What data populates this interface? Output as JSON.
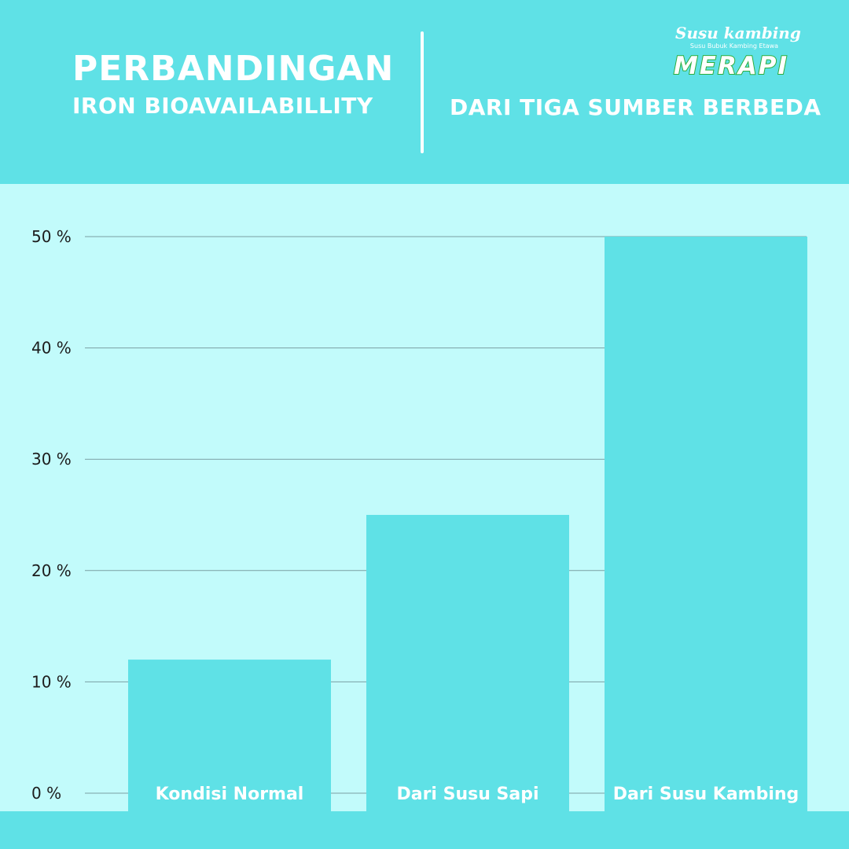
{
  "header": {
    "title_main": "PERBANDINGAN",
    "title_sub": "IRON BIOAVAILABILLITY",
    "title_right": "DARI TIGA SUMBER BERBEDA"
  },
  "logo": {
    "top": "Susu kambing",
    "tagline": "Susu Bubuk Kambing Etawa",
    "brand": "MERAPI"
  },
  "colors": {
    "header_bg": "#5fe1e6",
    "chart_bg": "#c2fbfb",
    "bar": "#5fe1e6",
    "grid": "#7a9fa3",
    "logo_green": "#2cae3c"
  },
  "chart_data": {
    "type": "bar",
    "categories": [
      "Kondisi Normal",
      "Dari Susu Sapi",
      "Dari Susu Kambing"
    ],
    "values": [
      12,
      25,
      50
    ],
    "ylim": [
      0,
      50
    ],
    "yticks": [
      0,
      10,
      20,
      30,
      40,
      50
    ],
    "ytick_labels": [
      "0 %",
      "10 %",
      "20 %",
      "30 %",
      "40 %",
      "50 %"
    ],
    "grid": true,
    "xlabel": "",
    "ylabel": ""
  }
}
